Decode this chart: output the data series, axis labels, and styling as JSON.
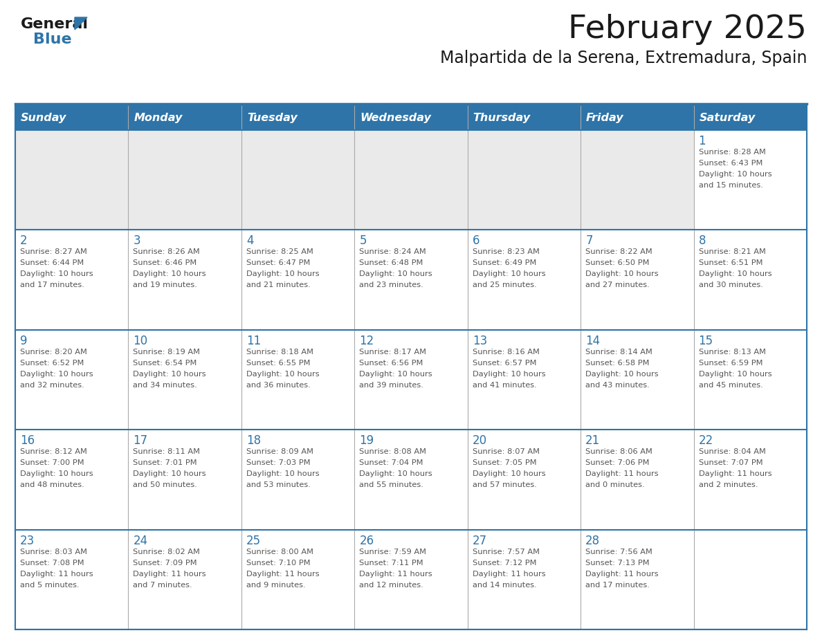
{
  "title": "February 2025",
  "subtitle": "Malpartida de la Serena, Extremadura, Spain",
  "days_of_week": [
    "Sunday",
    "Monday",
    "Tuesday",
    "Wednesday",
    "Thursday",
    "Friday",
    "Saturday"
  ],
  "header_bg": "#2E74A8",
  "header_text": "#FFFFFF",
  "row0_bg": "#EAEAEA",
  "cell_bg": "#FFFFFF",
  "day_number_color": "#2E74A8",
  "info_text_color": "#555555",
  "border_color": "#2E74A8",
  "separator_color": "#2E74A8",
  "col_divider_color": "#AAAAAA",
  "calendar": [
    [
      null,
      null,
      null,
      null,
      null,
      null,
      {
        "day": 1,
        "sunrise": "8:28 AM",
        "sunset": "6:43 PM",
        "daylight": "10 hours and 15 minutes."
      }
    ],
    [
      {
        "day": 2,
        "sunrise": "8:27 AM",
        "sunset": "6:44 PM",
        "daylight": "10 hours and 17 minutes."
      },
      {
        "day": 3,
        "sunrise": "8:26 AM",
        "sunset": "6:46 PM",
        "daylight": "10 hours and 19 minutes."
      },
      {
        "day": 4,
        "sunrise": "8:25 AM",
        "sunset": "6:47 PM",
        "daylight": "10 hours and 21 minutes."
      },
      {
        "day": 5,
        "sunrise": "8:24 AM",
        "sunset": "6:48 PM",
        "daylight": "10 hours and 23 minutes."
      },
      {
        "day": 6,
        "sunrise": "8:23 AM",
        "sunset": "6:49 PM",
        "daylight": "10 hours and 25 minutes."
      },
      {
        "day": 7,
        "sunrise": "8:22 AM",
        "sunset": "6:50 PM",
        "daylight": "10 hours and 27 minutes."
      },
      {
        "day": 8,
        "sunrise": "8:21 AM",
        "sunset": "6:51 PM",
        "daylight": "10 hours and 30 minutes."
      }
    ],
    [
      {
        "day": 9,
        "sunrise": "8:20 AM",
        "sunset": "6:52 PM",
        "daylight": "10 hours and 32 minutes."
      },
      {
        "day": 10,
        "sunrise": "8:19 AM",
        "sunset": "6:54 PM",
        "daylight": "10 hours and 34 minutes."
      },
      {
        "day": 11,
        "sunrise": "8:18 AM",
        "sunset": "6:55 PM",
        "daylight": "10 hours and 36 minutes."
      },
      {
        "day": 12,
        "sunrise": "8:17 AM",
        "sunset": "6:56 PM",
        "daylight": "10 hours and 39 minutes."
      },
      {
        "day": 13,
        "sunrise": "8:16 AM",
        "sunset": "6:57 PM",
        "daylight": "10 hours and 41 minutes."
      },
      {
        "day": 14,
        "sunrise": "8:14 AM",
        "sunset": "6:58 PM",
        "daylight": "10 hours and 43 minutes."
      },
      {
        "day": 15,
        "sunrise": "8:13 AM",
        "sunset": "6:59 PM",
        "daylight": "10 hours and 45 minutes."
      }
    ],
    [
      {
        "day": 16,
        "sunrise": "8:12 AM",
        "sunset": "7:00 PM",
        "daylight": "10 hours and 48 minutes."
      },
      {
        "day": 17,
        "sunrise": "8:11 AM",
        "sunset": "7:01 PM",
        "daylight": "10 hours and 50 minutes."
      },
      {
        "day": 18,
        "sunrise": "8:09 AM",
        "sunset": "7:03 PM",
        "daylight": "10 hours and 53 minutes."
      },
      {
        "day": 19,
        "sunrise": "8:08 AM",
        "sunset": "7:04 PM",
        "daylight": "10 hours and 55 minutes."
      },
      {
        "day": 20,
        "sunrise": "8:07 AM",
        "sunset": "7:05 PM",
        "daylight": "10 hours and 57 minutes."
      },
      {
        "day": 21,
        "sunrise": "8:06 AM",
        "sunset": "7:06 PM",
        "daylight": "11 hours and 0 minutes."
      },
      {
        "day": 22,
        "sunrise": "8:04 AM",
        "sunset": "7:07 PM",
        "daylight": "11 hours and 2 minutes."
      }
    ],
    [
      {
        "day": 23,
        "sunrise": "8:03 AM",
        "sunset": "7:08 PM",
        "daylight": "11 hours and 5 minutes."
      },
      {
        "day": 24,
        "sunrise": "8:02 AM",
        "sunset": "7:09 PM",
        "daylight": "11 hours and 7 minutes."
      },
      {
        "day": 25,
        "sunrise": "8:00 AM",
        "sunset": "7:10 PM",
        "daylight": "11 hours and 9 minutes."
      },
      {
        "day": 26,
        "sunrise": "7:59 AM",
        "sunset": "7:11 PM",
        "daylight": "11 hours and 12 minutes."
      },
      {
        "day": 27,
        "sunrise": "7:57 AM",
        "sunset": "7:12 PM",
        "daylight": "11 hours and 14 minutes."
      },
      {
        "day": 28,
        "sunrise": "7:56 AM",
        "sunset": "7:13 PM",
        "daylight": "11 hours and 17 minutes."
      },
      null
    ]
  ]
}
